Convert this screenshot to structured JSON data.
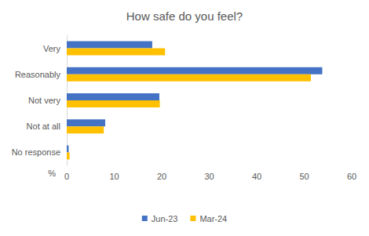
{
  "chart_data": {
    "type": "bar",
    "orientation": "horizontal",
    "title": "How safe do you feel?",
    "x_label": "%",
    "categories": [
      "Very",
      "Reasonably",
      "Not very",
      "Not at all",
      "No response"
    ],
    "series": [
      {
        "name": "Jun-23",
        "color": "#4472c4",
        "values": [
          18.0,
          53.8,
          19.5,
          8.1,
          0.4
        ]
      },
      {
        "name": "Mar-24",
        "color": "#ffc000",
        "values": [
          20.7,
          51.4,
          19.6,
          7.8,
          0.6
        ]
      }
    ],
    "xlim": [
      0,
      60
    ],
    "xticks": [
      0,
      10,
      20,
      30,
      40,
      50,
      60
    ],
    "grid": false,
    "legend": "bottom"
  }
}
